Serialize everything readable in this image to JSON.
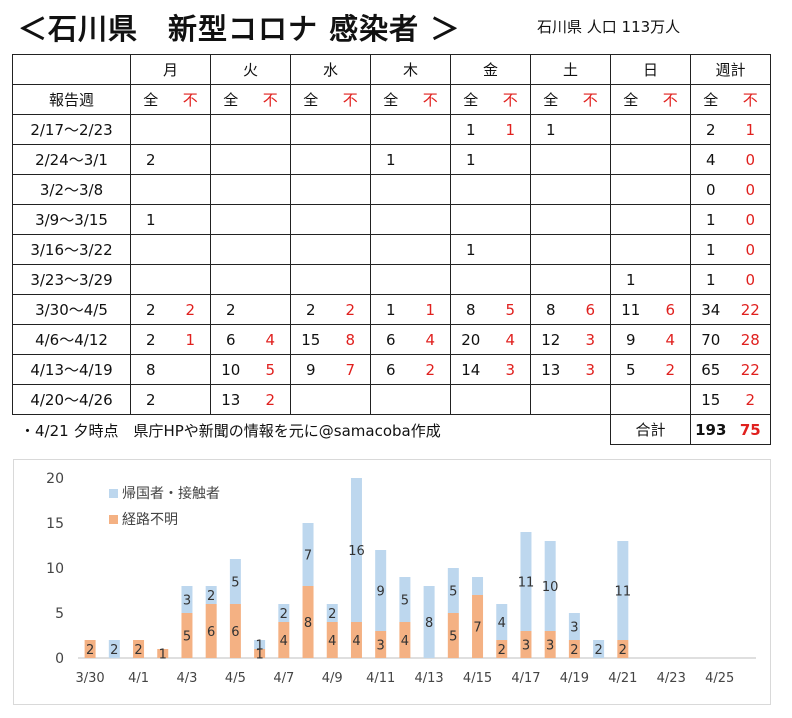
{
  "title": "＜石川県　新型コロナ 感染者 ＞",
  "population": "石川県 人口 113万人",
  "table": {
    "weekday_headers": [
      "月",
      "火",
      "水",
      "木",
      "金",
      "土",
      "日",
      "週計"
    ],
    "week_label_header": "報告週",
    "sub_all": "全",
    "sub_unknown": "不",
    "rows": [
      {
        "week": "2/17～2/23",
        "cells": [
          [
            "",
            ""
          ],
          [
            "",
            ""
          ],
          [
            "",
            ""
          ],
          [
            "",
            ""
          ],
          [
            "1",
            "1"
          ],
          [
            "1",
            ""
          ],
          [
            "",
            ""
          ],
          [
            "2",
            "1"
          ]
        ]
      },
      {
        "week": "2/24～3/1",
        "cells": [
          [
            "2",
            ""
          ],
          [
            "",
            ""
          ],
          [
            "",
            ""
          ],
          [
            "1",
            ""
          ],
          [
            "1",
            ""
          ],
          [
            "",
            ""
          ],
          [
            "",
            ""
          ],
          [
            "4",
            "0"
          ]
        ]
      },
      {
        "week": "3/2～3/8",
        "cells": [
          [
            "",
            ""
          ],
          [
            "",
            ""
          ],
          [
            "",
            ""
          ],
          [
            "",
            ""
          ],
          [
            "",
            ""
          ],
          [
            "",
            ""
          ],
          [
            "",
            ""
          ],
          [
            "0",
            "0"
          ]
        ]
      },
      {
        "week": "3/9～3/15",
        "cells": [
          [
            "1",
            ""
          ],
          [
            "",
            ""
          ],
          [
            "",
            ""
          ],
          [
            "",
            ""
          ],
          [
            "",
            ""
          ],
          [
            "",
            ""
          ],
          [
            "",
            ""
          ],
          [
            "1",
            "0"
          ]
        ]
      },
      {
        "week": "3/16～3/22",
        "cells": [
          [
            "",
            ""
          ],
          [
            "",
            ""
          ],
          [
            "",
            ""
          ],
          [
            "",
            ""
          ],
          [
            "1",
            ""
          ],
          [
            "",
            ""
          ],
          [
            "",
            ""
          ],
          [
            "1",
            "0"
          ]
        ]
      },
      {
        "week": "3/23～3/29",
        "cells": [
          [
            "",
            ""
          ],
          [
            "",
            ""
          ],
          [
            "",
            ""
          ],
          [
            "",
            ""
          ],
          [
            "",
            ""
          ],
          [
            "",
            ""
          ],
          [
            "1",
            ""
          ],
          [
            "1",
            "0"
          ]
        ]
      },
      {
        "week": "3/30～4/5",
        "cells": [
          [
            "2",
            "2"
          ],
          [
            "2",
            ""
          ],
          [
            "2",
            "2"
          ],
          [
            "1",
            "1"
          ],
          [
            "8",
            "5"
          ],
          [
            "8",
            "6"
          ],
          [
            "11",
            "6"
          ],
          [
            "34",
            "22"
          ]
        ]
      },
      {
        "week": "4/6～4/12",
        "cells": [
          [
            "2",
            "1"
          ],
          [
            "6",
            "4"
          ],
          [
            "15",
            "8"
          ],
          [
            "6",
            "4"
          ],
          [
            "20",
            "4"
          ],
          [
            "12",
            "3"
          ],
          [
            "9",
            "4"
          ],
          [
            "70",
            "28"
          ]
        ]
      },
      {
        "week": "4/13～4/19",
        "cells": [
          [
            "8",
            ""
          ],
          [
            "10",
            "5"
          ],
          [
            "9",
            "7"
          ],
          [
            "6",
            "2"
          ],
          [
            "14",
            "3"
          ],
          [
            "13",
            "3"
          ],
          [
            "5",
            "2"
          ],
          [
            "65",
            "22"
          ]
        ]
      },
      {
        "week": "4/20～4/26",
        "cells": [
          [
            "2",
            ""
          ],
          [
            "13",
            "2"
          ],
          [
            "",
            ""
          ],
          [
            "",
            ""
          ],
          [
            "",
            ""
          ],
          [
            "",
            ""
          ],
          [
            "",
            ""
          ],
          [
            "15",
            "2"
          ]
        ]
      }
    ],
    "total_label": "合計",
    "total_all": "193",
    "total_unknown": "75"
  },
  "note": "・4/21 夕時点　県庁HPや新聞の情報を元に@samacoba作成",
  "colors": {
    "contact": "#bdd7ee",
    "unknown": "#f4b183",
    "red_text": "#e0201e"
  },
  "chart_data": {
    "type": "bar",
    "stacked": true,
    "ylim": [
      0,
      20
    ],
    "yticks": [
      0,
      5,
      10,
      15,
      20
    ],
    "legend_position": "top-left",
    "categories": [
      "3/30",
      "3/31",
      "4/1",
      "4/2",
      "4/3",
      "4/4",
      "4/5",
      "4/6",
      "4/7",
      "4/8",
      "4/9",
      "4/10",
      "4/11",
      "4/12",
      "4/13",
      "4/14",
      "4/15",
      "4/16",
      "4/17",
      "4/18",
      "4/19",
      "4/20",
      "4/21",
      "4/22",
      "4/23",
      "4/24",
      "4/25",
      "4/26"
    ],
    "x_tick_labels": [
      "3/30",
      "4/1",
      "4/3",
      "4/5",
      "4/7",
      "4/9",
      "4/11",
      "4/13",
      "4/15",
      "4/17",
      "4/19",
      "4/21",
      "4/23",
      "4/25"
    ],
    "series": [
      {
        "name": "経路不明",
        "color": "#f4b183",
        "values": [
          2,
          0,
          2,
          1,
          5,
          6,
          6,
          1,
          4,
          8,
          4,
          4,
          3,
          4,
          0,
          5,
          7,
          2,
          3,
          3,
          2,
          0,
          2,
          0,
          0,
          0,
          0,
          0
        ]
      },
      {
        "name": "帰国者・接触者",
        "color": "#bdd7ee",
        "values": [
          0,
          2,
          0,
          0,
          3,
          2,
          5,
          1,
          2,
          7,
          2,
          16,
          9,
          5,
          8,
          5,
          2,
          4,
          11,
          10,
          3,
          2,
          11,
          0,
          0,
          0,
          0,
          0
        ]
      }
    ],
    "labels_unknown": [
      "2",
      "",
      "2",
      "1",
      "5",
      "6",
      "6",
      "1",
      "4",
      "8",
      "4",
      "4",
      "3",
      "4",
      "",
      "5",
      "7",
      "2",
      "3",
      "3",
      "2",
      "",
      "2",
      "",
      "",
      "",
      "",
      ""
    ],
    "labels_contact": [
      "",
      "2",
      "",
      "",
      "3",
      "2",
      "5",
      "1",
      "2",
      "7",
      "2",
      "16",
      "9",
      "5",
      "8",
      "5",
      "",
      "4",
      "11",
      "10",
      "3",
      "2",
      "11",
      "",
      "",
      "",
      "",
      ""
    ]
  }
}
